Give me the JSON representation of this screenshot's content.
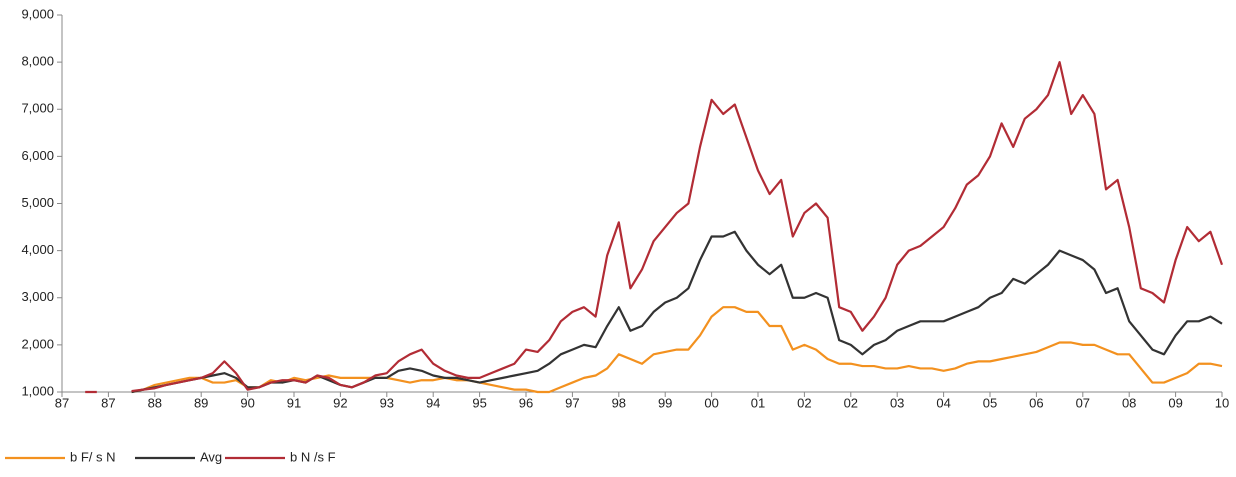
{
  "chart_data": {
    "type": "line",
    "categories": [
      "87",
      null,
      null,
      null,
      "87",
      null,
      null,
      null,
      "88",
      null,
      null,
      null,
      "89",
      null,
      null,
      null,
      "90",
      null,
      null,
      null,
      "91",
      null,
      null,
      null,
      "92",
      null,
      null,
      null,
      "93",
      null,
      null,
      null,
      "94",
      null,
      null,
      null,
      "95",
      null,
      null,
      null,
      "96",
      null,
      null,
      null,
      "97",
      null,
      null,
      null,
      "98",
      null,
      null,
      null,
      "99",
      null,
      null,
      null,
      "00",
      null,
      null,
      null,
      "01",
      null,
      null,
      null,
      "02",
      null,
      null,
      null,
      "02",
      null,
      null,
      null,
      "03",
      null,
      null,
      null,
      "04",
      null,
      null,
      null,
      "05",
      null,
      null,
      null,
      "06",
      null,
      null,
      null,
      "07",
      null,
      null,
      null,
      "08",
      null,
      null,
      null,
      "09",
      null,
      null,
      null,
      "10"
    ],
    "series": [
      {
        "name": "b F/ s  N",
        "color": "#f3911f",
        "values": [
          null,
          null,
          null,
          null,
          null,
          null,
          1000,
          1050,
          1150,
          1200,
          1250,
          1300,
          1300,
          1200,
          1200,
          1250,
          1100,
          1100,
          1250,
          1200,
          1300,
          1250,
          1300,
          1350,
          1300,
          1300,
          1300,
          1300,
          1300,
          1250,
          1200,
          1250,
          1250,
          1300,
          1250,
          1250,
          1200,
          1150,
          1100,
          1050,
          1050,
          1000,
          1000,
          1100,
          1200,
          1300,
          1350,
          1500,
          1800,
          1700,
          1600,
          1800,
          1850,
          1900,
          1900,
          2200,
          2600,
          2800,
          2800,
          2700,
          2700,
          2400,
          2400,
          1900,
          2000,
          1900,
          1700,
          1600,
          1600,
          1550,
          1550,
          1500,
          1500,
          1550,
          1500,
          1500,
          1450,
          1500,
          1600,
          1650,
          1650,
          1700,
          1750,
          1800,
          1850,
          1950,
          2050,
          2050,
          2000,
          2000,
          1900,
          1800,
          1800,
          1500,
          1200,
          1200,
          1300,
          1400,
          1600,
          1600,
          1550
        ]
      },
      {
        "name": "Avg",
        "color": "#333333",
        "values": [
          null,
          null,
          null,
          null,
          null,
          null,
          1000,
          1050,
          1100,
          1150,
          1200,
          1250,
          1300,
          1350,
          1400,
          1300,
          1100,
          1100,
          1200,
          1200,
          1250,
          1200,
          1350,
          1250,
          1150,
          1100,
          1200,
          1300,
          1300,
          1450,
          1500,
          1450,
          1350,
          1300,
          1300,
          1250,
          1200,
          1250,
          1300,
          1350,
          1400,
          1450,
          1600,
          1800,
          1900,
          2000,
          1950,
          2400,
          2800,
          2300,
          2400,
          2700,
          2900,
          3000,
          3200,
          3800,
          4300,
          4300,
          4400,
          4000,
          3700,
          3500,
          3700,
          3000,
          3000,
          3100,
          3000,
          2100,
          2000,
          1800,
          2000,
          2100,
          2300,
          2400,
          2500,
          2500,
          2500,
          2600,
          2700,
          2800,
          3000,
          3100,
          3400,
          3300,
          3500,
          3700,
          4000,
          3900,
          3800,
          3600,
          3100,
          3200,
          2500,
          2200,
          1900,
          1800,
          2200,
          2500,
          2500,
          2600,
          2450
        ]
      },
      {
        "name": "b N /s F",
        "color": "#b22c35",
        "values": [
          null,
          null,
          1000,
          1000,
          null,
          null,
          1020,
          1050,
          1080,
          1150,
          1200,
          1250,
          1300,
          1400,
          1650,
          1400,
          1050,
          1100,
          1200,
          1250,
          1250,
          1200,
          1350,
          1300,
          1150,
          1100,
          1200,
          1350,
          1400,
          1650,
          1800,
          1900,
          1600,
          1450,
          1350,
          1300,
          1300,
          1400,
          1500,
          1600,
          1900,
          1850,
          2100,
          2500,
          2700,
          2800,
          2600,
          3900,
          4600,
          3200,
          3600,
          4200,
          4500,
          4800,
          5000,
          6200,
          7200,
          6900,
          7100,
          6400,
          5700,
          5200,
          5500,
          4300,
          4800,
          5000,
          4700,
          2800,
          2700,
          2300,
          2600,
          3000,
          3700,
          4000,
          4100,
          4300,
          4500,
          4900,
          5400,
          5600,
          6000,
          6700,
          6200,
          6800,
          7000,
          7300,
          8000,
          6900,
          7300,
          6900,
          5300,
          5500,
          4500,
          3200,
          3100,
          2900,
          3800,
          4500,
          4200,
          4400,
          3700
        ]
      }
    ],
    "ylim": [
      1000,
      9000
    ],
    "yticks": [
      {
        "value": 1000,
        "label": "1,000"
      },
      {
        "value": 2000,
        "label": "2,000"
      },
      {
        "value": 3000,
        "label": "3,000"
      },
      {
        "value": 4000,
        "label": "4,000"
      },
      {
        "value": 5000,
        "label": "5,000"
      },
      {
        "value": 6000,
        "label": "6,000"
      },
      {
        "value": 7000,
        "label": "7,000"
      },
      {
        "value": 8000,
        "label": "8,000"
      },
      {
        "value": 9000,
        "label": "9,000"
      }
    ]
  }
}
